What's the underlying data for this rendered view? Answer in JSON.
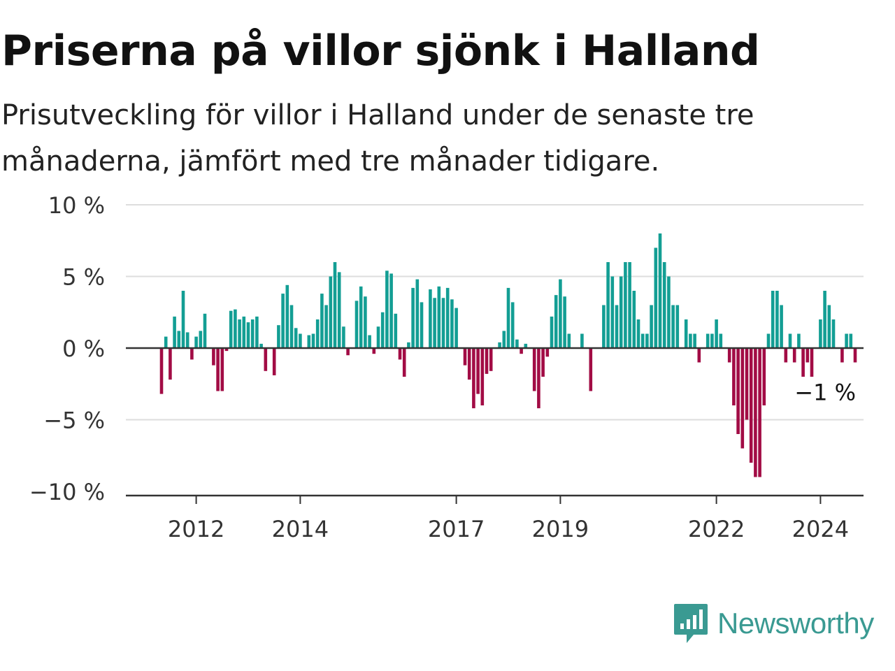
{
  "header": {
    "title": "Priserna på villor sjönk i Halland",
    "subtitle": "Prisutveckling för villor i Halland under de senaste tre månaderna, jämfört med tre månader tidigare."
  },
  "chart_data": {
    "type": "bar",
    "title": "Priserna på villor sjönk i Halland",
    "subtitle": "Prisutveckling för villor i Halland under de senaste tre månaderna, jämfört med tre månader tidigare.",
    "xlabel": "",
    "ylabel": "",
    "ylim": [
      -10,
      10
    ],
    "y_ticks": [
      {
        "value": 10,
        "label": "10 %"
      },
      {
        "value": 5,
        "label": "5 %"
      },
      {
        "value": 0,
        "label": "0 %"
      },
      {
        "value": -5,
        "label": "−5 %"
      },
      {
        "value": -10,
        "label": "−10 %"
      }
    ],
    "x_ticks": [
      "2012",
      "2014",
      "2017",
      "2019",
      "2022",
      "2024"
    ],
    "x_tick_index": [
      8,
      32,
      68,
      92,
      128,
      152
    ],
    "grid": true,
    "legend": "none",
    "colors": {
      "positive": "#139e94",
      "negative": "#a20c45",
      "grid": "#dddddd",
      "axis": "#333333"
    },
    "annotation": {
      "text": "−1 %",
      "value": -1
    },
    "values": [
      -3.2,
      0.8,
      -2.2,
      2.2,
      1.2,
      4.0,
      1.1,
      -0.8,
      0.8,
      1.2,
      2.4,
      0,
      -1.2,
      -3.0,
      -3.0,
      -0.2,
      2.6,
      2.7,
      2.0,
      2.2,
      1.8,
      2.0,
      2.2,
      0.3,
      -1.6,
      0,
      -1.9,
      1.6,
      3.8,
      4.4,
      3.0,
      1.4,
      1.0,
      0,
      0.9,
      1.0,
      2.0,
      3.8,
      3.0,
      5.0,
      6.0,
      5.3,
      1.5,
      -0.5,
      0,
      3.3,
      4.3,
      3.6,
      0.9,
      -0.4,
      1.5,
      2.5,
      5.4,
      5.2,
      2.4,
      -0.8,
      -2.0,
      0.4,
      4.2,
      4.8,
      3.2,
      0,
      4.1,
      3.5,
      4.3,
      3.5,
      4.2,
      3.4,
      2.8,
      0,
      -1.2,
      -2.2,
      -4.2,
      -3.2,
      -4.0,
      -1.8,
      -1.6,
      0,
      0.4,
      1.2,
      4.2,
      3.2,
      0.6,
      -0.4,
      0.3,
      0,
      -3.0,
      -4.2,
      -2.0,
      -0.6,
      2.2,
      3.7,
      4.8,
      3.6,
      1.0,
      0,
      0,
      1.0,
      0,
      -3.0,
      0,
      0,
      3.0,
      6.0,
      5.0,
      3.0,
      5.0,
      6.0,
      6.0,
      4.0,
      2.0,
      1.0,
      1.0,
      3.0,
      7.0,
      8.0,
      6.0,
      5.0,
      3.0,
      3.0,
      0,
      2.0,
      1.0,
      1.0,
      -1.0,
      0,
      1.0,
      1.0,
      2.0,
      1.0,
      0,
      -1.0,
      -4.0,
      -6.0,
      -7.0,
      -5.0,
      -8.0,
      -9.0,
      -9.0,
      -4.0,
      1.0,
      4.0,
      4.0,
      3.0,
      -1.0,
      1.0,
      -1.0,
      1.0,
      -2.0,
      -1.0,
      -2.0,
      0,
      2.0,
      4.0,
      3.0,
      2.0,
      0,
      -1.0,
      1.0,
      1.0,
      -1.0
    ]
  },
  "brand": {
    "name": "Newsworthy",
    "color": "#3a9a92",
    "icon": "newsworthy-logo-icon"
  }
}
